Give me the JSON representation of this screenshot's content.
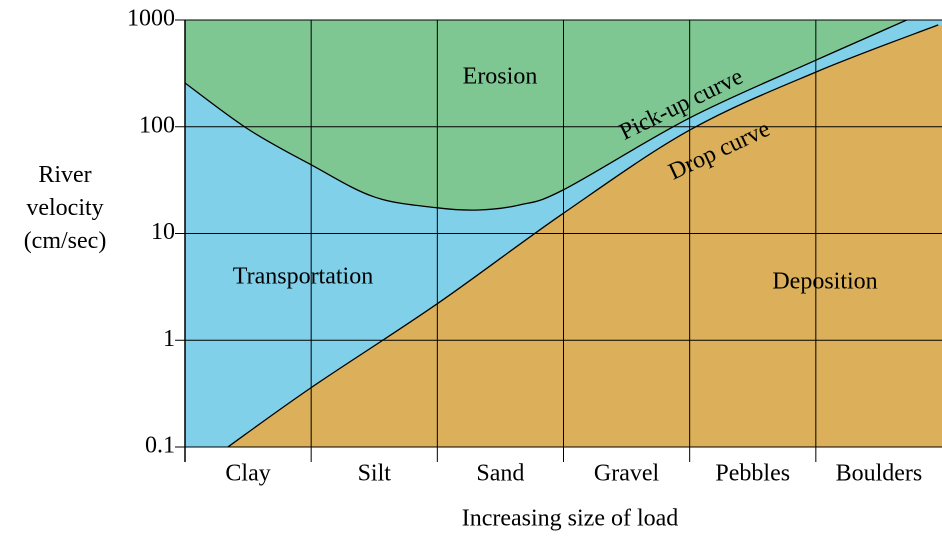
{
  "chart_data": {
    "type": "line",
    "y_label": "River velocity (cm/sec)",
    "x_label": "Increasing size of load",
    "categories": [
      "Clay",
      "Silt",
      "Sand",
      "Gravel",
      "Pebbles",
      "Boulders"
    ],
    "xlim": [
      0,
      6
    ],
    "ylim": [
      0.1,
      1000
    ],
    "yticks": [
      0.1,
      1,
      10,
      100,
      1000
    ],
    "log_y": true,
    "grid": true,
    "series": [
      {
        "name": "Pick-up curve",
        "color": "#000000",
        "x": [
          0,
          0.5,
          1,
          1.5,
          2,
          2.33,
          2.65,
          3,
          4,
          5,
          5.72
        ],
        "values": [
          257,
          95,
          44,
          22,
          17.4,
          16.6,
          18.5,
          25.7,
          121,
          420,
          1000
        ]
      },
      {
        "name": "Drop curve",
        "color": "#000000",
        "x": [
          0.34,
          1,
          2,
          3,
          4,
          5,
          5.97
        ],
        "values": [
          0.1,
          0.36,
          2.2,
          15.5,
          93,
          325,
          900
        ]
      }
    ],
    "regions": [
      {
        "text": "Erosion",
        "color": "#7ec793"
      },
      {
        "text": "Transportation",
        "color": "#80d0ea"
      },
      {
        "text": "Deposition",
        "color": "#dcb05a"
      }
    ]
  }
}
